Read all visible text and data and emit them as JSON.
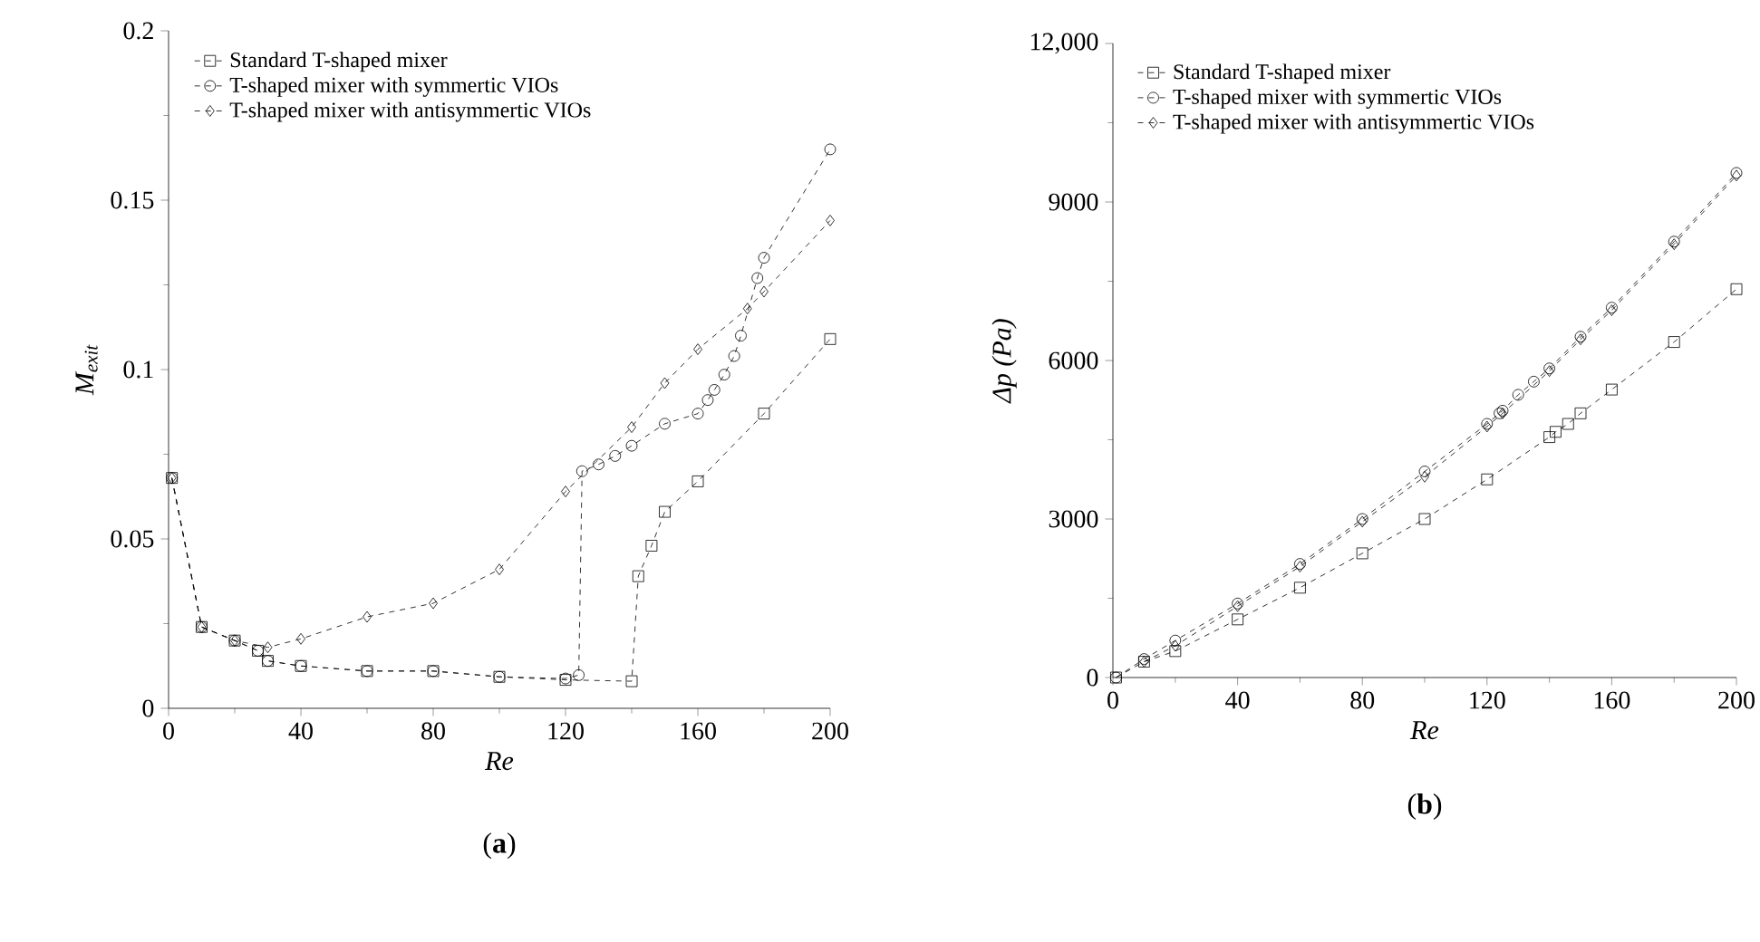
{
  "chart_data": [
    {
      "type": "line",
      "title": "(**a**)",
      "xlabel": "Re",
      "ylabel": "M$_{exit}$",
      "xlim": [
        0,
        200
      ],
      "xticks": [
        0,
        40,
        80,
        120,
        160,
        200
      ],
      "ylim": [
        0,
        0.2
      ],
      "yticks": [
        0,
        0.05,
        0.1,
        0.15,
        0.2
      ],
      "legend": "top left",
      "line_style": "dashed",
      "grid": false,
      "series": [
        {
          "name": "Standard T-shaped mixer",
          "color": "#000000",
          "marker": "square",
          "x": [
            1,
            10,
            20,
            27,
            30,
            40,
            60,
            80,
            100,
            120,
            140,
            142,
            146,
            150,
            160,
            180,
            200
          ],
          "values": [
            0.068,
            0.024,
            0.02,
            0.017,
            0.014,
            0.0125,
            0.011,
            0.011,
            0.0093,
            0.0084,
            0.008,
            0.039,
            0.048,
            0.058,
            0.067,
            0.087,
            0.109
          ]
        },
        {
          "name": "T-shaped mixer with symmertic VIOs",
          "color": "#000000",
          "marker": "circle",
          "x": [
            1,
            10,
            20,
            27,
            30,
            40,
            60,
            80,
            100,
            120,
            124,
            125,
            130,
            135,
            140,
            150,
            160,
            163,
            165,
            168,
            171,
            173,
            178,
            180,
            200
          ],
          "values": [
            0.068,
            0.024,
            0.02,
            0.017,
            0.014,
            0.0125,
            0.011,
            0.011,
            0.0093,
            0.0088,
            0.0098,
            0.07,
            0.072,
            0.0745,
            0.0775,
            0.084,
            0.087,
            0.091,
            0.094,
            0.0985,
            0.104,
            0.11,
            0.127,
            0.133,
            0.165
          ]
        },
        {
          "name": "T-shaped mixer with antisymmertic VIOs",
          "color": "#000000",
          "marker": "diamond",
          "x": [
            1,
            10,
            20,
            30,
            40,
            60,
            80,
            100,
            120,
            140,
            150,
            160,
            175,
            180,
            200
          ],
          "values": [
            0.068,
            0.024,
            0.02,
            0.018,
            0.0205,
            0.027,
            0.031,
            0.041,
            0.064,
            0.083,
            0.096,
            0.106,
            0.118,
            0.123,
            0.144
          ]
        }
      ]
    },
    {
      "type": "line",
      "title": "(**b**)",
      "xlabel": "Re",
      "ylabel": "Δp (Pa)",
      "xlim": [
        0,
        200
      ],
      "xticks": [
        0,
        40,
        80,
        120,
        160,
        200
      ],
      "ylim": [
        0,
        12000
      ],
      "yticks": [
        0,
        3000,
        6000,
        9000,
        {
          "value": 12000,
          "label": "12,000"
        }
      ],
      "legend": "top left",
      "line_style": "dashed",
      "grid": false,
      "series": [
        {
          "name": "Standard T-shaped mixer",
          "color": "#000000",
          "marker": "square",
          "x": [
            1,
            10,
            20,
            40,
            60,
            80,
            100,
            120,
            140,
            142,
            146,
            150,
            160,
            180,
            200
          ],
          "values": [
            0,
            300,
            500,
            1100,
            1700,
            2350,
            3000,
            3750,
            4550,
            4650,
            4800,
            5000,
            5450,
            6350,
            7350
          ]
        },
        {
          "name": "T-shaped mixer with symmertic VIOs",
          "color": "#000000",
          "marker": "circle",
          "x": [
            1,
            10,
            20,
            40,
            60,
            80,
            100,
            120,
            124,
            125,
            130,
            135,
            140,
            150,
            160,
            180,
            200
          ],
          "values": [
            0,
            350,
            700,
            1400,
            2150,
            3000,
            3900,
            4800,
            5000,
            5050,
            5350,
            5600,
            5850,
            6450,
            7000,
            8250,
            9550
          ]
        },
        {
          "name": "T-shaped mixer with antisymmertic VIOs",
          "color": "#000000",
          "marker": "diamond",
          "x": [
            10,
            20,
            40,
            60,
            80,
            100,
            120,
            125,
            140,
            150,
            160,
            180,
            200
          ],
          "values": [
            300,
            600,
            1350,
            2100,
            2950,
            3800,
            4750,
            5000,
            5800,
            6400,
            6950,
            8200,
            9500
          ]
        }
      ]
    }
  ]
}
